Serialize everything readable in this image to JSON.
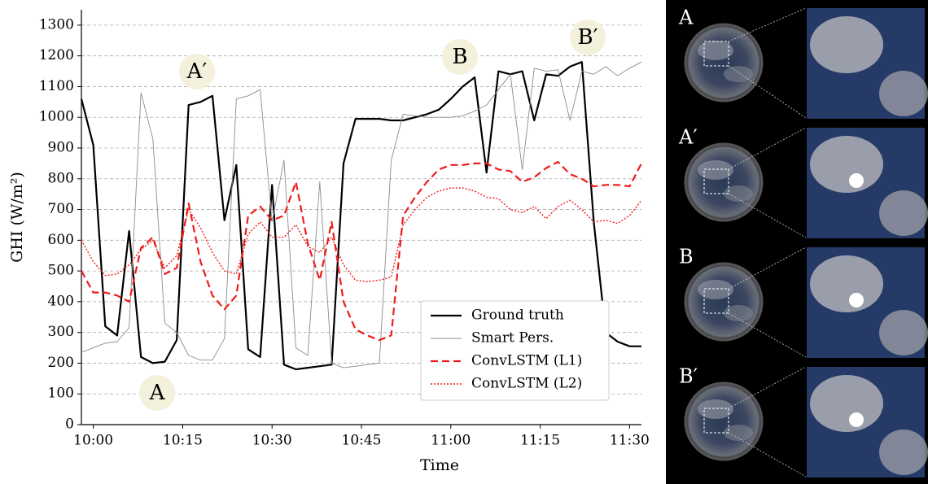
{
  "chart_data": {
    "type": "line",
    "x_label": "Time",
    "y_label": "GHI (W/m²)",
    "x": [
      -2,
      0,
      2,
      4,
      6,
      8,
      10,
      12,
      14,
      16,
      18,
      20,
      22,
      24,
      26,
      28,
      30,
      32,
      34,
      36,
      38,
      40,
      42,
      44,
      46,
      48,
      50,
      52,
      54,
      56,
      58,
      60,
      62,
      64,
      66,
      68,
      70,
      72,
      74,
      76,
      78,
      80,
      82,
      84,
      86,
      88,
      90,
      92
    ],
    "xlim": [
      -2,
      92
    ],
    "ylim": [
      0,
      1350
    ],
    "xticks": [
      {
        "value": 0,
        "label": "10:00"
      },
      {
        "value": 15,
        "label": "10:15"
      },
      {
        "value": 30,
        "label": "10:30"
      },
      {
        "value": 45,
        "label": "10:45"
      },
      {
        "value": 60,
        "label": "11:00"
      },
      {
        "value": 75,
        "label": "11:15"
      },
      {
        "value": 90,
        "label": "11:30"
      }
    ],
    "yticks": [
      0,
      100,
      200,
      300,
      400,
      500,
      600,
      700,
      800,
      900,
      1000,
      1100,
      1200,
      1300
    ],
    "grid": true,
    "legend": "lower right",
    "series": [
      {
        "name": "Ground truth",
        "color": "#000000",
        "linestyle": "solid",
        "linewidth": 2.2,
        "values": [
          1060,
          910,
          320,
          290,
          630,
          220,
          200,
          205,
          275,
          1040,
          1050,
          1070,
          665,
          845,
          245,
          220,
          780,
          195,
          180,
          185,
          190,
          195,
          850,
          995,
          995,
          995,
          990,
          990,
          1000,
          1010,
          1025,
          1060,
          1100,
          1130,
          820,
          1150,
          1140,
          1150,
          990,
          1140,
          1135,
          1165,
          1180,
          660,
          300,
          270,
          255,
          255
        ]
      },
      {
        "name": "Smart Pers.",
        "color": "#8c8c8c",
        "linestyle": "solid",
        "linewidth": 0.9,
        "values": [
          235,
          250,
          265,
          270,
          315,
          1080,
          930,
          330,
          300,
          225,
          210,
          210,
          280,
          1060,
          1070,
          1090,
          660,
          860,
          250,
          225,
          790,
          200,
          185,
          190,
          195,
          200,
          860,
          1010,
          1005,
          1000,
          1000,
          1000,
          1005,
          1020,
          1040,
          1090,
          1140,
          830,
          1160,
          1150,
          1155,
          990,
          1150,
          1140,
          1165,
          1135,
          1160,
          1180
        ]
      },
      {
        "name": "ConvLSTM (L1)",
        "color": "#ee1c1c",
        "linestyle": "dashed",
        "linewidth": 2.2,
        "values": [
          500,
          430,
          430,
          420,
          400,
          575,
          610,
          490,
          510,
          720,
          530,
          420,
          375,
          420,
          680,
          710,
          665,
          680,
          790,
          590,
          470,
          660,
          400,
          310,
          290,
          275,
          290,
          680,
          740,
          790,
          830,
          845,
          845,
          850,
          850,
          830,
          825,
          790,
          805,
          835,
          855,
          815,
          800,
          775,
          780,
          780,
          775,
          850
        ]
      },
      {
        "name": "ConvLSTM (L2)",
        "color": "#ee1c1c",
        "linestyle": "dotted",
        "linewidth": 1.4,
        "values": [
          600,
          530,
          485,
          490,
          520,
          570,
          600,
          510,
          550,
          700,
          640,
          560,
          500,
          490,
          620,
          660,
          610,
          610,
          650,
          580,
          560,
          610,
          520,
          470,
          465,
          470,
          480,
          650,
          700,
          740,
          760,
          770,
          770,
          760,
          740,
          735,
          700,
          690,
          710,
          670,
          710,
          730,
          700,
          660,
          665,
          655,
          680,
          730
        ]
      }
    ],
    "annotations": [
      "A′",
      "A",
      "B",
      "B′"
    ]
  },
  "panels": [
    {
      "label": "A"
    },
    {
      "label": "A′"
    },
    {
      "label": "B"
    },
    {
      "label": "B′"
    }
  ]
}
